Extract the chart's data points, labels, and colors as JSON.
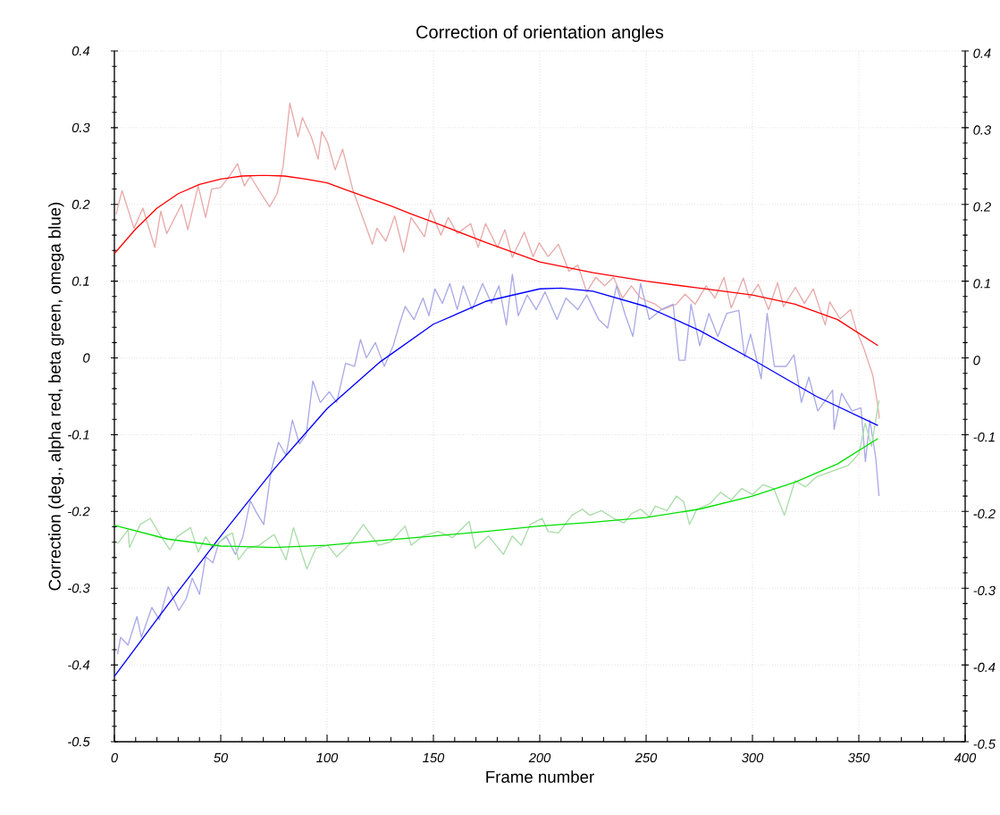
{
  "chart_data": {
    "type": "line",
    "title": "Correction of orientation angles",
    "xlabel": "Frame number",
    "ylabel": "Correction (deg., alpha red, beta green, omega blue)",
    "xlim": [
      0,
      400
    ],
    "xticks": [
      0,
      50,
      100,
      150,
      200,
      250,
      300,
      350,
      400
    ],
    "ylim": [
      -0.5,
      0.4
    ],
    "yticks": [
      -0.5,
      -0.4,
      -0.3,
      -0.2,
      -0.1,
      0,
      0.1,
      0.2,
      0.3,
      0.4
    ],
    "y2lim": [
      -0.5,
      0.4
    ],
    "y2ticks": [
      -0.5,
      -0.4,
      -0.3,
      -0.2,
      -0.1,
      0,
      0.1,
      0.2,
      0.3,
      0.4
    ],
    "grid": true,
    "marker": "none",
    "line_style": "solid",
    "series": [
      {
        "color": "#e8aaaa",
        "x": [
          0.8,
          3.6,
          9.2,
          13.4,
          19.0,
          21.8,
          24.6,
          31.6,
          34.5,
          39.4,
          42.9,
          45.7,
          49.9,
          54.1,
          57.9,
          61.1,
          63.9,
          68.1,
          73.0,
          76.5,
          79.3,
          82.5,
          86.3,
          88.4,
          92.6,
          95.8,
          97.5,
          100.3,
          103.8,
          107.3,
          112.2,
          115.7,
          121.3,
          123.4,
          127.6,
          131.8,
          136.0,
          139.5,
          145.8,
          148.6,
          153.5,
          157.0,
          161.2,
          167.5,
          171.0,
          174.5,
          180.1,
          183.6,
          187.1,
          192.7,
          196.9,
          199.7,
          203.9,
          208.8,
          213.7,
          217.9,
          222.1,
          226.3,
          230.5,
          234.7,
          238.9,
          243.1,
          247.4,
          254.3,
          257.8,
          264.2,
          268.3,
          273.1,
          278.2,
          282.4,
          286.6,
          290.0,
          295.7,
          298.5,
          302.7,
          307.6,
          311.8,
          314.6,
          320.2,
          324.4,
          328.6,
          334.2,
          336.3,
          341.2,
          346.1,
          348.9,
          352.4,
          356.6,
          358.7,
          359.7
        ],
        "values": [
          0.187,
          0.218,
          0.169,
          0.195,
          0.144,
          0.191,
          0.162,
          0.2,
          0.167,
          0.224,
          0.183,
          0.22,
          0.222,
          0.237,
          0.253,
          0.224,
          0.237,
          0.218,
          0.197,
          0.214,
          0.249,
          0.332,
          0.288,
          0.313,
          0.288,
          0.259,
          0.295,
          0.28,
          0.245,
          0.272,
          0.218,
          0.191,
          0.148,
          0.169,
          0.152,
          0.185,
          0.138,
          0.183,
          0.158,
          0.193,
          0.16,
          0.183,
          0.162,
          0.175,
          0.144,
          0.175,
          0.144,
          0.167,
          0.131,
          0.164,
          0.132,
          0.15,
          0.132,
          0.148,
          0.113,
          0.121,
          0.086,
          0.105,
          0.094,
          0.105,
          0.078,
          0.094,
          0.078,
          0.07,
          0.063,
          0.07,
          0.083,
          0.07,
          0.094,
          0.078,
          0.105,
          0.065,
          0.104,
          0.078,
          0.096,
          0.063,
          0.098,
          0.067,
          0.092,
          0.071,
          0.09,
          0.043,
          0.073,
          0.051,
          0.063,
          0.036,
          0.012,
          -0.023,
          -0.058,
          -0.079
        ]
      },
      {
        "color": "#aaaae8",
        "x": [
          1.5,
          2.9,
          6.4,
          10.6,
          12.7,
          17.6,
          21.1,
          25.3,
          30.3,
          33.7,
          36.6,
          40.0,
          42.9,
          46.3,
          49.2,
          52.7,
          56.9,
          60.4,
          63.9,
          66.7,
          70.2,
          73.7,
          77.2,
          80.7,
          83.7,
          87.0,
          90.2,
          93.3,
          96.8,
          101.0,
          104.5,
          108.7,
          112.9,
          115.7,
          118.5,
          122.7,
          126.9,
          131.1,
          133.9,
          136.7,
          140.9,
          145.1,
          147.9,
          150.7,
          154.2,
          157.7,
          161.2,
          164.0,
          168.2,
          173.1,
          177.3,
          180.8,
          184.3,
          187.1,
          189.9,
          194.1,
          198.3,
          202.5,
          208.1,
          212.3,
          217.9,
          222.1,
          227.7,
          231.9,
          236.1,
          240.3,
          243.8,
          247.4,
          251.5,
          257.1,
          262.7,
          265.5,
          268.3,
          271.1,
          275.2,
          279.5,
          283.7,
          287.9,
          293.6,
          296.3,
          299.1,
          304.1,
          306.9,
          310.3,
          315.9,
          319.5,
          323.0,
          326.5,
          330.7,
          337.7,
          338.4,
          341.9,
          346.8,
          351.0,
          353.1,
          355.2,
          358.0,
          359.5
        ],
        "values": [
          -0.386,
          -0.364,
          -0.374,
          -0.337,
          -0.364,
          -0.325,
          -0.341,
          -0.298,
          -0.329,
          -0.314,
          -0.287,
          -0.308,
          -0.259,
          -0.267,
          -0.24,
          -0.233,
          -0.256,
          -0.233,
          -0.186,
          -0.201,
          -0.217,
          -0.147,
          -0.11,
          -0.127,
          -0.081,
          -0.112,
          -0.1,
          -0.03,
          -0.058,
          -0.044,
          -0.058,
          -0.007,
          -0.011,
          0.024,
          0.0,
          0.02,
          -0.011,
          0.016,
          0.043,
          0.067,
          0.05,
          0.078,
          0.055,
          0.09,
          0.071,
          0.097,
          0.063,
          0.094,
          0.063,
          0.097,
          0.071,
          0.094,
          0.043,
          0.109,
          0.055,
          0.082,
          0.063,
          0.086,
          0.05,
          0.078,
          0.063,
          0.082,
          0.05,
          0.039,
          0.094,
          0.055,
          0.028,
          0.097,
          0.05,
          0.063,
          0.07,
          -0.003,
          -0.003,
          0.07,
          0.016,
          0.058,
          0.028,
          0.058,
          0.062,
          0.001,
          0.031,
          -0.027,
          0.058,
          -0.011,
          -0.011,
          0.004,
          -0.058,
          -0.025,
          -0.069,
          -0.042,
          -0.093,
          -0.046,
          -0.069,
          -0.065,
          -0.135,
          -0.081,
          -0.131,
          -0.18
        ]
      },
      {
        "color": "#aadcaa",
        "x": [
          1.5,
          6.4,
          7.1,
          12.1,
          16.9,
          21.1,
          26.1,
          29.5,
          35.8,
          39.4,
          42.9,
          46.3,
          52.0,
          55.5,
          58.3,
          62.5,
          68.1,
          75.1,
          80.7,
          84.2,
          90.5,
          94.7,
          100.3,
          104.5,
          110.1,
          117.1,
          119.9,
          124.1,
          129.7,
          136.7,
          139.5,
          145.1,
          152.1,
          159.1,
          166.8,
          169.6,
          175.9,
          182.9,
          187.1,
          191.3,
          195.5,
          201.1,
          203.9,
          208.8,
          215.1,
          220.0,
          223.5,
          229.1,
          234.7,
          239.6,
          243.1,
          247.4,
          251.5,
          254.3,
          259.9,
          264.2,
          267.6,
          270.4,
          273.9,
          280,
          285,
          290,
          295,
          300,
          305,
          310,
          315,
          320,
          325,
          330,
          335,
          340,
          345,
          350,
          353,
          356,
          359.5
        ],
        "values": [
          -0.242,
          -0.224,
          -0.247,
          -0.217,
          -0.209,
          -0.229,
          -0.25,
          -0.233,
          -0.221,
          -0.253,
          -0.233,
          -0.248,
          -0.233,
          -0.228,
          -0.263,
          -0.248,
          -0.244,
          -0.23,
          -0.263,
          -0.221,
          -0.275,
          -0.248,
          -0.244,
          -0.259,
          -0.244,
          -0.217,
          -0.228,
          -0.244,
          -0.24,
          -0.219,
          -0.244,
          -0.232,
          -0.226,
          -0.234,
          -0.213,
          -0.248,
          -0.232,
          -0.256,
          -0.232,
          -0.244,
          -0.217,
          -0.209,
          -0.226,
          -0.228,
          -0.205,
          -0.197,
          -0.205,
          -0.199,
          -0.209,
          -0.215,
          -0.203,
          -0.197,
          -0.207,
          -0.193,
          -0.199,
          -0.18,
          -0.187,
          -0.217,
          -0.197,
          -0.19,
          -0.175,
          -0.185,
          -0.17,
          -0.178,
          -0.165,
          -0.17,
          -0.205,
          -0.16,
          -0.168,
          -0.155,
          -0.15,
          -0.145,
          -0.14,
          -0.125,
          -0.085,
          -0.115,
          -0.055
        ]
      },
      {
        "color": "#ff0000",
        "x": [
          0,
          10,
          20,
          30,
          40,
          50,
          60,
          70,
          80,
          90,
          100,
          110,
          120,
          130,
          140,
          150,
          175,
          200,
          225,
          250,
          275,
          300,
          320,
          340,
          359
        ],
        "values": [
          0.136,
          0.168,
          0.195,
          0.214,
          0.226,
          0.233,
          0.237,
          0.238,
          0.237,
          0.233,
          0.228,
          0.218,
          0.208,
          0.198,
          0.187,
          0.177,
          0.15,
          0.125,
          0.111,
          0.1,
          0.091,
          0.082,
          0.07,
          0.05,
          0.016
        ]
      },
      {
        "color": "#0000ff",
        "x": [
          0,
          25,
          50,
          75,
          100,
          125,
          150,
          175,
          200,
          210,
          225,
          250,
          275,
          300,
          330,
          359
        ],
        "values": [
          -0.415,
          -0.322,
          -0.232,
          -0.145,
          -0.066,
          -0.005,
          0.044,
          0.074,
          0.09,
          0.091,
          0.087,
          0.067,
          0.036,
          -0.002,
          -0.05,
          -0.088
        ]
      },
      {
        "color": "#00e000",
        "x": [
          0,
          25,
          50,
          75,
          100,
          125,
          150,
          175,
          200,
          225,
          250,
          275,
          300,
          320,
          340,
          359
        ],
        "values": [
          -0.218,
          -0.236,
          -0.245,
          -0.247,
          -0.244,
          -0.238,
          -0.232,
          -0.226,
          -0.219,
          -0.214,
          -0.208,
          -0.197,
          -0.18,
          -0.162,
          -0.138,
          -0.105
        ]
      }
    ]
  }
}
